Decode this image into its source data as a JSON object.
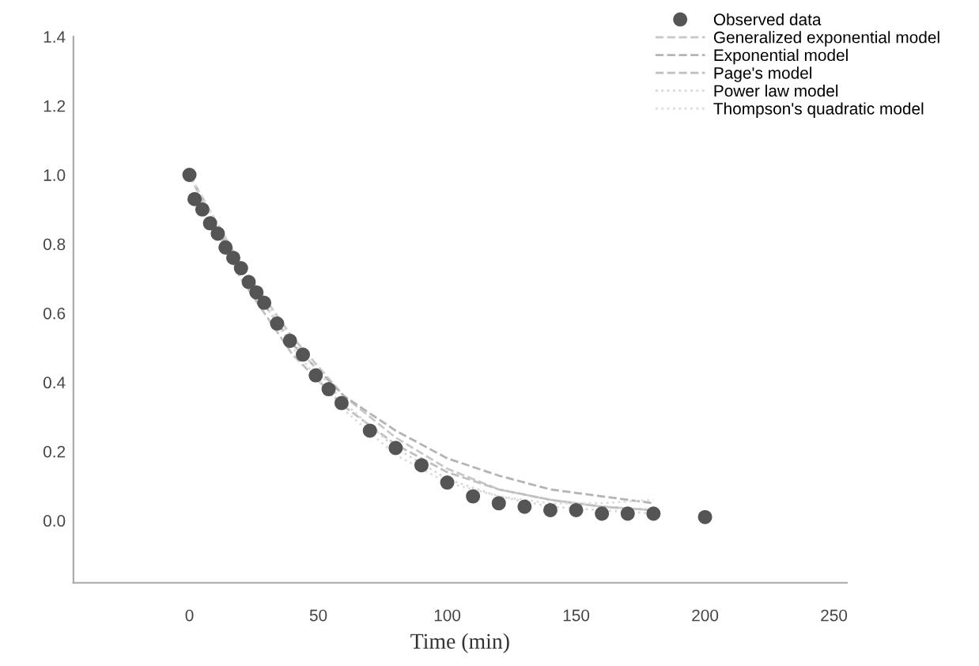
{
  "chart_data": {
    "type": "scatter",
    "xlabel": "Time (min)",
    "xlim": [
      -45,
      255
    ],
    "ylim": [
      -0.18,
      1.4
    ],
    "xticks": [
      0,
      50,
      100,
      150,
      200,
      250
    ],
    "yticks": [
      {
        "value": 0,
        "label": "0.0"
      },
      {
        "value": 0.2,
        "label": "0.2"
      },
      {
        "value": 0.4,
        "label": "0.4"
      },
      {
        "value": 0.6,
        "label": "0.6"
      },
      {
        "value": 0.8,
        "label": "0.8"
      },
      {
        "value": 1.0,
        "label": "1.0"
      },
      {
        "value": 1.2,
        "label": "1.2"
      },
      {
        "value": 1.4,
        "label": "1.4"
      }
    ],
    "legend": "top right",
    "grid": false,
    "series": [
      {
        "name": "Observed data",
        "marker": "circle",
        "color": "#555555",
        "x": [
          0,
          2,
          5,
          8,
          11,
          14,
          17,
          20,
          23,
          26,
          29,
          34,
          39,
          44,
          49,
          54,
          59,
          70,
          80,
          90,
          100,
          110,
          120,
          130,
          140,
          150,
          160,
          170,
          180,
          200
        ],
        "values": [
          1.0,
          0.93,
          0.9,
          0.86,
          0.83,
          0.79,
          0.76,
          0.73,
          0.69,
          0.66,
          0.63,
          0.57,
          0.52,
          0.48,
          0.42,
          0.38,
          0.34,
          0.26,
          0.21,
          0.16,
          0.11,
          0.07,
          0.05,
          0.04,
          0.03,
          0.03,
          0.02,
          0.02,
          0.02,
          0.01
        ]
      },
      {
        "name": "Generalized exponential model",
        "type": "line",
        "line_style": "dashed",
        "color": "#c8c8c8",
        "x": [
          0,
          20,
          40,
          60,
          80,
          100,
          120,
          140,
          160,
          180
        ],
        "values": [
          1.0,
          0.74,
          0.53,
          0.36,
          0.24,
          0.15,
          0.09,
          0.06,
          0.04,
          0.03
        ]
      },
      {
        "name": "Exponential model",
        "type": "line",
        "line_style": "dashed",
        "color": "#b4b4b4",
        "x": [
          0,
          20,
          40,
          60,
          80,
          100,
          120,
          140,
          160,
          180
        ],
        "values": [
          1.0,
          0.72,
          0.51,
          0.36,
          0.26,
          0.18,
          0.13,
          0.09,
          0.07,
          0.05
        ]
      },
      {
        "name": "Page's model",
        "type": "line",
        "line_style": "dashed",
        "color": "#c0c0c0",
        "x": [
          0,
          20,
          40,
          60,
          80,
          100,
          120,
          140,
          160,
          180
        ],
        "values": [
          1.0,
          0.7,
          0.48,
          0.33,
          0.22,
          0.14,
          0.09,
          0.06,
          0.04,
          0.03
        ]
      },
      {
        "name": "Power law model",
        "type": "line",
        "line_style": "dotted",
        "color": "#d8d8d8",
        "x": [
          0,
          20,
          40,
          60,
          80,
          100,
          120,
          140,
          160,
          180
        ],
        "values": [
          1.0,
          0.74,
          0.52,
          0.34,
          0.21,
          0.12,
          0.07,
          0.04,
          0.03,
          0.02
        ]
      },
      {
        "name": "Thompson's quadratic model",
        "type": "line",
        "line_style": "dotted",
        "color": "#dcdcdc",
        "x": [
          0,
          20,
          40,
          60,
          80,
          100,
          120,
          140,
          160,
          180
        ],
        "values": [
          1.0,
          0.73,
          0.5,
          0.32,
          0.19,
          0.11,
          0.07,
          0.05,
          0.05,
          0.06
        ]
      }
    ]
  }
}
